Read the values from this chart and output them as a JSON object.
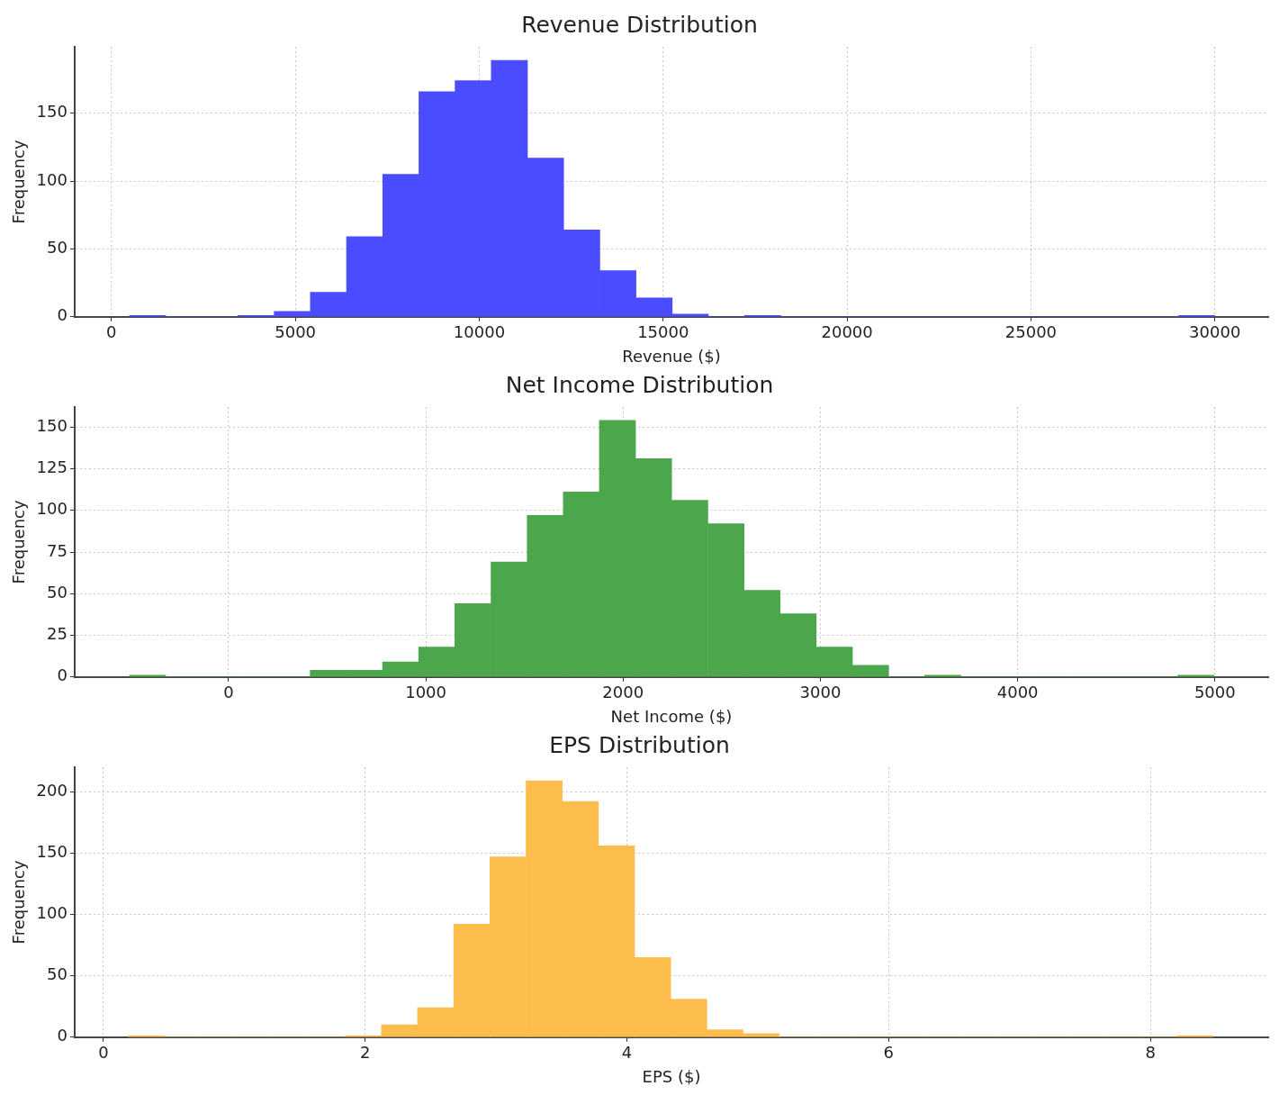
{
  "chart_data": [
    {
      "type": "histogram",
      "title": "Revenue Distribution",
      "xlabel": "Revenue ($)",
      "ylabel": "Frequency",
      "color": "#4b4bff",
      "bins": [
        490,
        1474,
        2457,
        3441,
        4425,
        5408,
        6392,
        7376,
        8360,
        9343,
        10327,
        11311,
        12294,
        13278,
        14262,
        15245,
        16229,
        17213,
        18197,
        19180,
        20164,
        21148,
        22131,
        23115,
        24099,
        25082,
        26066,
        27050,
        28034,
        29017,
        30000
      ],
      "values": [
        1,
        0,
        0,
        1,
        4,
        18,
        59,
        105,
        166,
        174,
        189,
        117,
        64,
        34,
        14,
        2,
        0,
        1,
        0,
        0,
        0,
        0,
        0,
        0,
        0,
        0,
        0,
        0,
        0,
        1
      ],
      "xlim": [
        -1000,
        31450
      ],
      "ylim": [
        0,
        199
      ],
      "xticks": [
        0,
        5000,
        10000,
        15000,
        20000,
        25000,
        30000
      ],
      "yticks": [
        0,
        50,
        100,
        150
      ],
      "grid": true
    },
    {
      "type": "histogram",
      "title": "Net Income Distribution",
      "xlabel": "Net Income ($)",
      "ylabel": "Frequency",
      "color": "#4ca64c",
      "bins": [
        -502,
        -319,
        -136,
        47,
        231,
        414,
        597,
        781,
        964,
        1147,
        1330,
        1514,
        1697,
        1880,
        2063,
        2246,
        2430,
        2613,
        2796,
        2979,
        3163,
        3346,
        3529,
        3712,
        3896,
        4079,
        4262,
        4445,
        4629,
        4812,
        4995
      ],
      "values": [
        1,
        0,
        0,
        0,
        0,
        4,
        4,
        9,
        18,
        44,
        69,
        97,
        111,
        154,
        131,
        106,
        92,
        52,
        38,
        18,
        7,
        0,
        1,
        0,
        0,
        0,
        0,
        0,
        0,
        1
      ],
      "xlim": [
        -780,
        5270
      ],
      "ylim": [
        0,
        162
      ],
      "xticks": [
        0,
        1000,
        2000,
        3000,
        4000,
        5000
      ],
      "yticks": [
        0,
        25,
        50,
        75,
        100,
        125,
        150
      ],
      "grid": true
    },
    {
      "type": "histogram",
      "title": "EPS Distribution",
      "xlabel": "EPS ($)",
      "ylabel": "Frequency",
      "color": "#fcbd4d",
      "bins": [
        0.19,
        0.466,
        0.743,
        1.019,
        1.295,
        1.572,
        1.848,
        2.124,
        2.4,
        2.677,
        2.953,
        3.229,
        3.506,
        3.782,
        4.058,
        4.334,
        4.611,
        4.887,
        5.163,
        5.44,
        5.716,
        5.992,
        6.268,
        6.545,
        6.821,
        7.097,
        7.374,
        7.65,
        7.926,
        8.203,
        8.479
      ],
      "values": [
        1,
        0,
        0,
        0,
        0,
        0,
        1,
        10,
        24,
        92,
        147,
        209,
        192,
        156,
        65,
        31,
        6,
        3,
        0,
        0,
        0,
        0,
        0,
        0,
        0,
        0,
        0,
        0,
        0,
        1
      ],
      "xlim": [
        -0.22,
        8.9
      ],
      "ylim": [
        0,
        220
      ],
      "xticks": [
        0,
        2,
        4,
        6,
        8
      ],
      "yticks": [
        0,
        50,
        100,
        150,
        200
      ],
      "grid": true
    }
  ]
}
